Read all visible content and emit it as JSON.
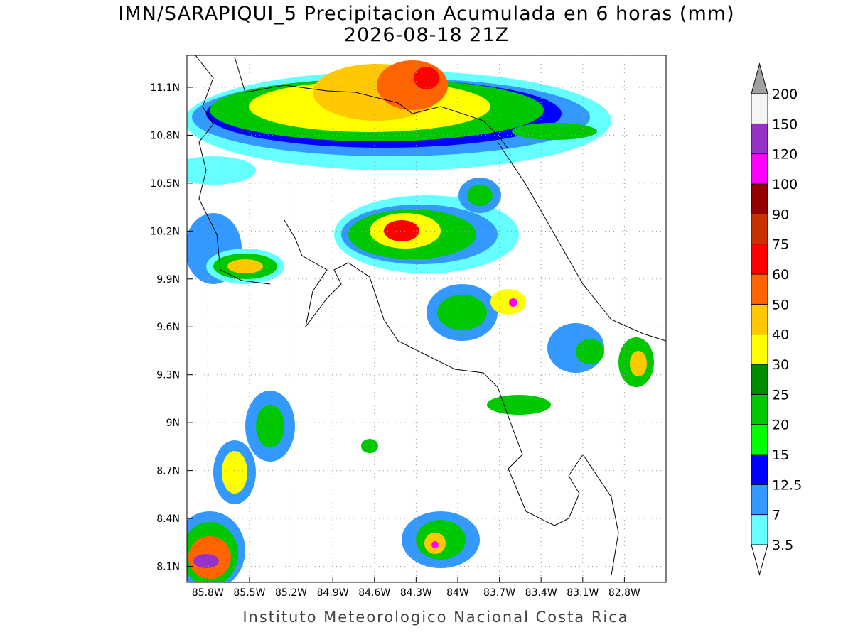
{
  "title": "IMN/SARAPIQUI_5 Precipitacion Acumulada en 6 horas (mm)",
  "subtitle": "2026-08-18 21Z",
  "map": {
    "xlim": [
      -85.95,
      -82.5
    ],
    "ylim": [
      8.0,
      11.3
    ],
    "xticks": [
      {
        "value": -85.8,
        "label": "85.8W"
      },
      {
        "value": -85.5,
        "label": "85.5W"
      },
      {
        "value": -85.2,
        "label": "85.2W"
      },
      {
        "value": -84.9,
        "label": "84.9W"
      },
      {
        "value": -84.6,
        "label": "84.6W"
      },
      {
        "value": -84.3,
        "label": "84.3W"
      },
      {
        "value": -84.0,
        "label": "84W"
      },
      {
        "value": -83.7,
        "label": "83.7W"
      },
      {
        "value": -83.4,
        "label": "83.4W"
      },
      {
        "value": -83.1,
        "label": "83.1W"
      },
      {
        "value": -82.8,
        "label": "82.8W"
      }
    ],
    "yticks": [
      {
        "value": 8.1,
        "label": "8.1N"
      },
      {
        "value": 8.4,
        "label": "8.4N"
      },
      {
        "value": 8.7,
        "label": "8.7N"
      },
      {
        "value": 9.0,
        "label": "9N"
      },
      {
        "value": 9.3,
        "label": "9.3N"
      },
      {
        "value": 9.6,
        "label": "9.6N"
      },
      {
        "value": 9.9,
        "label": "9.9N"
      },
      {
        "value": 10.2,
        "label": "10.2N"
      },
      {
        "value": 10.5,
        "label": "10.5N"
      },
      {
        "value": 10.8,
        "label": "10.8N"
      },
      {
        "value": 11.1,
        "label": "11.1N"
      }
    ],
    "grid": true
  },
  "colorbar": {
    "levels": [
      3.5,
      7,
      12.5,
      15,
      20,
      25,
      30,
      40,
      50,
      60,
      75,
      90,
      100,
      120,
      150,
      200
    ],
    "colors": [
      "#66ffff",
      "#3399ff",
      "#0000ff",
      "#00ff00",
      "#00c800",
      "#008c00",
      "#ffff00",
      "#ffc800",
      "#ff6400",
      "#ff0000",
      "#c83200",
      "#960000",
      "#ff00ff",
      "#9632c8",
      "#f5f5f5"
    ],
    "under_color": "#ffffff",
    "over_color": "#a0a0a0"
  },
  "footer": "Instituto Meteorologico Nacional Costa Rica"
}
